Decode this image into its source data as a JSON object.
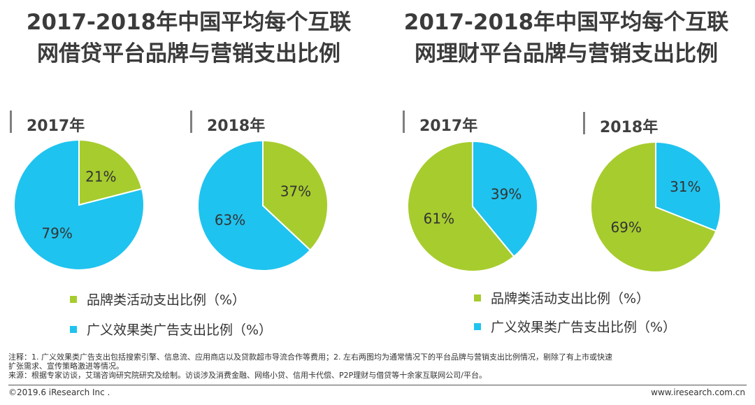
{
  "titles": {
    "left": [
      "2017-2018年中国平均每个互联",
      "网借贷平台品牌与营销支出比例"
    ],
    "right": [
      "2017-2018年中国平均每个互联",
      "网理财平台品牌与营销支出比例"
    ]
  },
  "colors": {
    "brand": "#a7cc2e",
    "ad": "#1fc3ef",
    "text": "#3b3b3b"
  },
  "chart_data": [
    {
      "type": "pie",
      "title": "2017年",
      "group": "互联网借贷平台",
      "slices": [
        {
          "name": "品牌类活动支出比例（%）",
          "value": 21,
          "label": "21%"
        },
        {
          "name": "广义效果类广告支出比例（%）",
          "value": 79,
          "label": "79%"
        }
      ]
    },
    {
      "type": "pie",
      "title": "2018年",
      "group": "互联网借贷平台",
      "slices": [
        {
          "name": "品牌类活动支出比例（%）",
          "value": 37,
          "label": "37%"
        },
        {
          "name": "广义效果类广告支出比例（%）",
          "value": 63,
          "label": "63%"
        }
      ]
    },
    {
      "type": "pie",
      "title": "2017年",
      "group": "互联网理财平台",
      "slices": [
        {
          "name": "品牌类活动支出比例（%）",
          "value": 61,
          "label": "61%"
        },
        {
          "name": "广义效果类广告支出比例（%）",
          "value": 39,
          "label": "39%"
        }
      ]
    },
    {
      "type": "pie",
      "title": "2018年",
      "group": "互联网理财平台",
      "slices": [
        {
          "name": "品牌类活动支出比例（%）",
          "value": 69,
          "label": "69%"
        },
        {
          "name": "广义效果类广告支出比例（%）",
          "value": 31,
          "label": "31%"
        }
      ]
    }
  ],
  "legend": {
    "brand": "品牌类活动支出比例（%）",
    "ad": "广义效果类广告支出比例（%）"
  },
  "notes": {
    "note_line1": "注释：1. 广义效果类广告支出包括搜索引擎、信息流、应用商店以及贷款超市导流合作等费用；2. 左右两图均为通常情况下的平台品牌与营销支出比例情况，剔除了有上市或快速",
    "note_line2": "扩张需求、宣传策略激进等情况。",
    "source": "来源：根据专家访谈，艾瑞咨询研究院研究及绘制。访谈涉及消费金融、网络小贷、信用卡代偿、P2P理财与借贷等十余家互联网公司/平台。"
  },
  "footer": {
    "copyright": "©2019.6 iResearch Inc .",
    "website": "www.iresearch.com.cn"
  }
}
